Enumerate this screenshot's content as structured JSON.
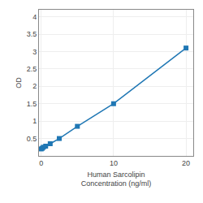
{
  "chart_data": {
    "type": "line",
    "xlabel": "Human Sarcolipin\nConcentration (ng/ml)",
    "ylabel": "OD",
    "x": [
      0,
      0.156,
      0.313,
      0.625,
      1.25,
      2.5,
      5,
      10,
      20
    ],
    "values": [
      0.2,
      0.22,
      0.25,
      0.28,
      0.35,
      0.5,
      0.85,
      1.5,
      3.1
    ],
    "marker": "square",
    "xlim": [
      -0.3,
      21
    ],
    "ylim": [
      0.0,
      4.2
    ],
    "xticks": [
      0,
      10,
      20
    ],
    "yticks": [
      0.5,
      1,
      1.5,
      2,
      2.5,
      3,
      3.5,
      4
    ],
    "grid": true
  }
}
